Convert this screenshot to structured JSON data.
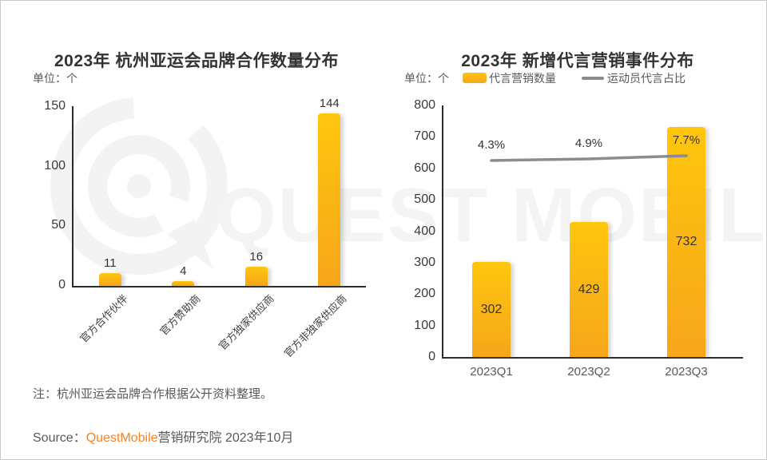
{
  "chart_data": [
    {
      "type": "bar",
      "title": "2023年 杭州亚运会品牌合作数量分布",
      "unit_label": "单位：个",
      "categories": [
        "官方合作伙伴",
        "官方赞助商",
        "官方独家供应商",
        "官方非独家供应商"
      ],
      "values": [
        11,
        4,
        16,
        144
      ],
      "xlabel": "",
      "ylabel": "",
      "ylim": [
        0,
        150
      ],
      "yticks": [
        0,
        50,
        100,
        150
      ],
      "yticks_desc": [
        "150",
        "100",
        "50",
        "0"
      ],
      "grid": false,
      "category_label_rotation_deg": -45,
      "bar_color_top": "#FFC60E",
      "bar_color_bottom": "#F6A61A"
    },
    {
      "type": "bar+line",
      "title": "2023年 新增代言营销事件分布",
      "unit_label": "单位：个",
      "categories": [
        "2023Q1",
        "2023Q2",
        "2023Q3"
      ],
      "series": [
        {
          "name": "代言营销数量",
          "type": "bar",
          "values": [
            302,
            429,
            732
          ]
        },
        {
          "name": "运动员代言占比",
          "type": "line",
          "values_percent": [
            4.3,
            4.9,
            7.7
          ],
          "labels": [
            "4.3%",
            "4.9%",
            "7.7%"
          ]
        }
      ],
      "xlabel": "",
      "ylabel": "",
      "ylim": [
        0,
        800
      ],
      "yticks": [
        0,
        100,
        200,
        300,
        400,
        500,
        600,
        700,
        800
      ],
      "yticks_desc": [
        "800",
        "700",
        "600",
        "500",
        "400",
        "300",
        "200",
        "100",
        "0"
      ],
      "grid": false,
      "legend_position": "top",
      "line_color": "#8C8C8C"
    }
  ],
  "watermark": {
    "text": "QUEST MOBILE"
  },
  "footer": {
    "note": "注：杭州亚运会品牌合作根据公开资料整理。",
    "source_prefix": "Source：",
    "source_brand": "QuestMobile",
    "source_suffix": "营销研究院 2023年10月"
  },
  "colors": {
    "bar_yellow_top": "#FFC60E",
    "bar_yellow_bottom": "#F6A61A",
    "trend_line_gray": "#8C8C8C",
    "brand_orange": "#F5821F",
    "text_gray": "#595959",
    "axis_dark": "#2B2B2B"
  }
}
